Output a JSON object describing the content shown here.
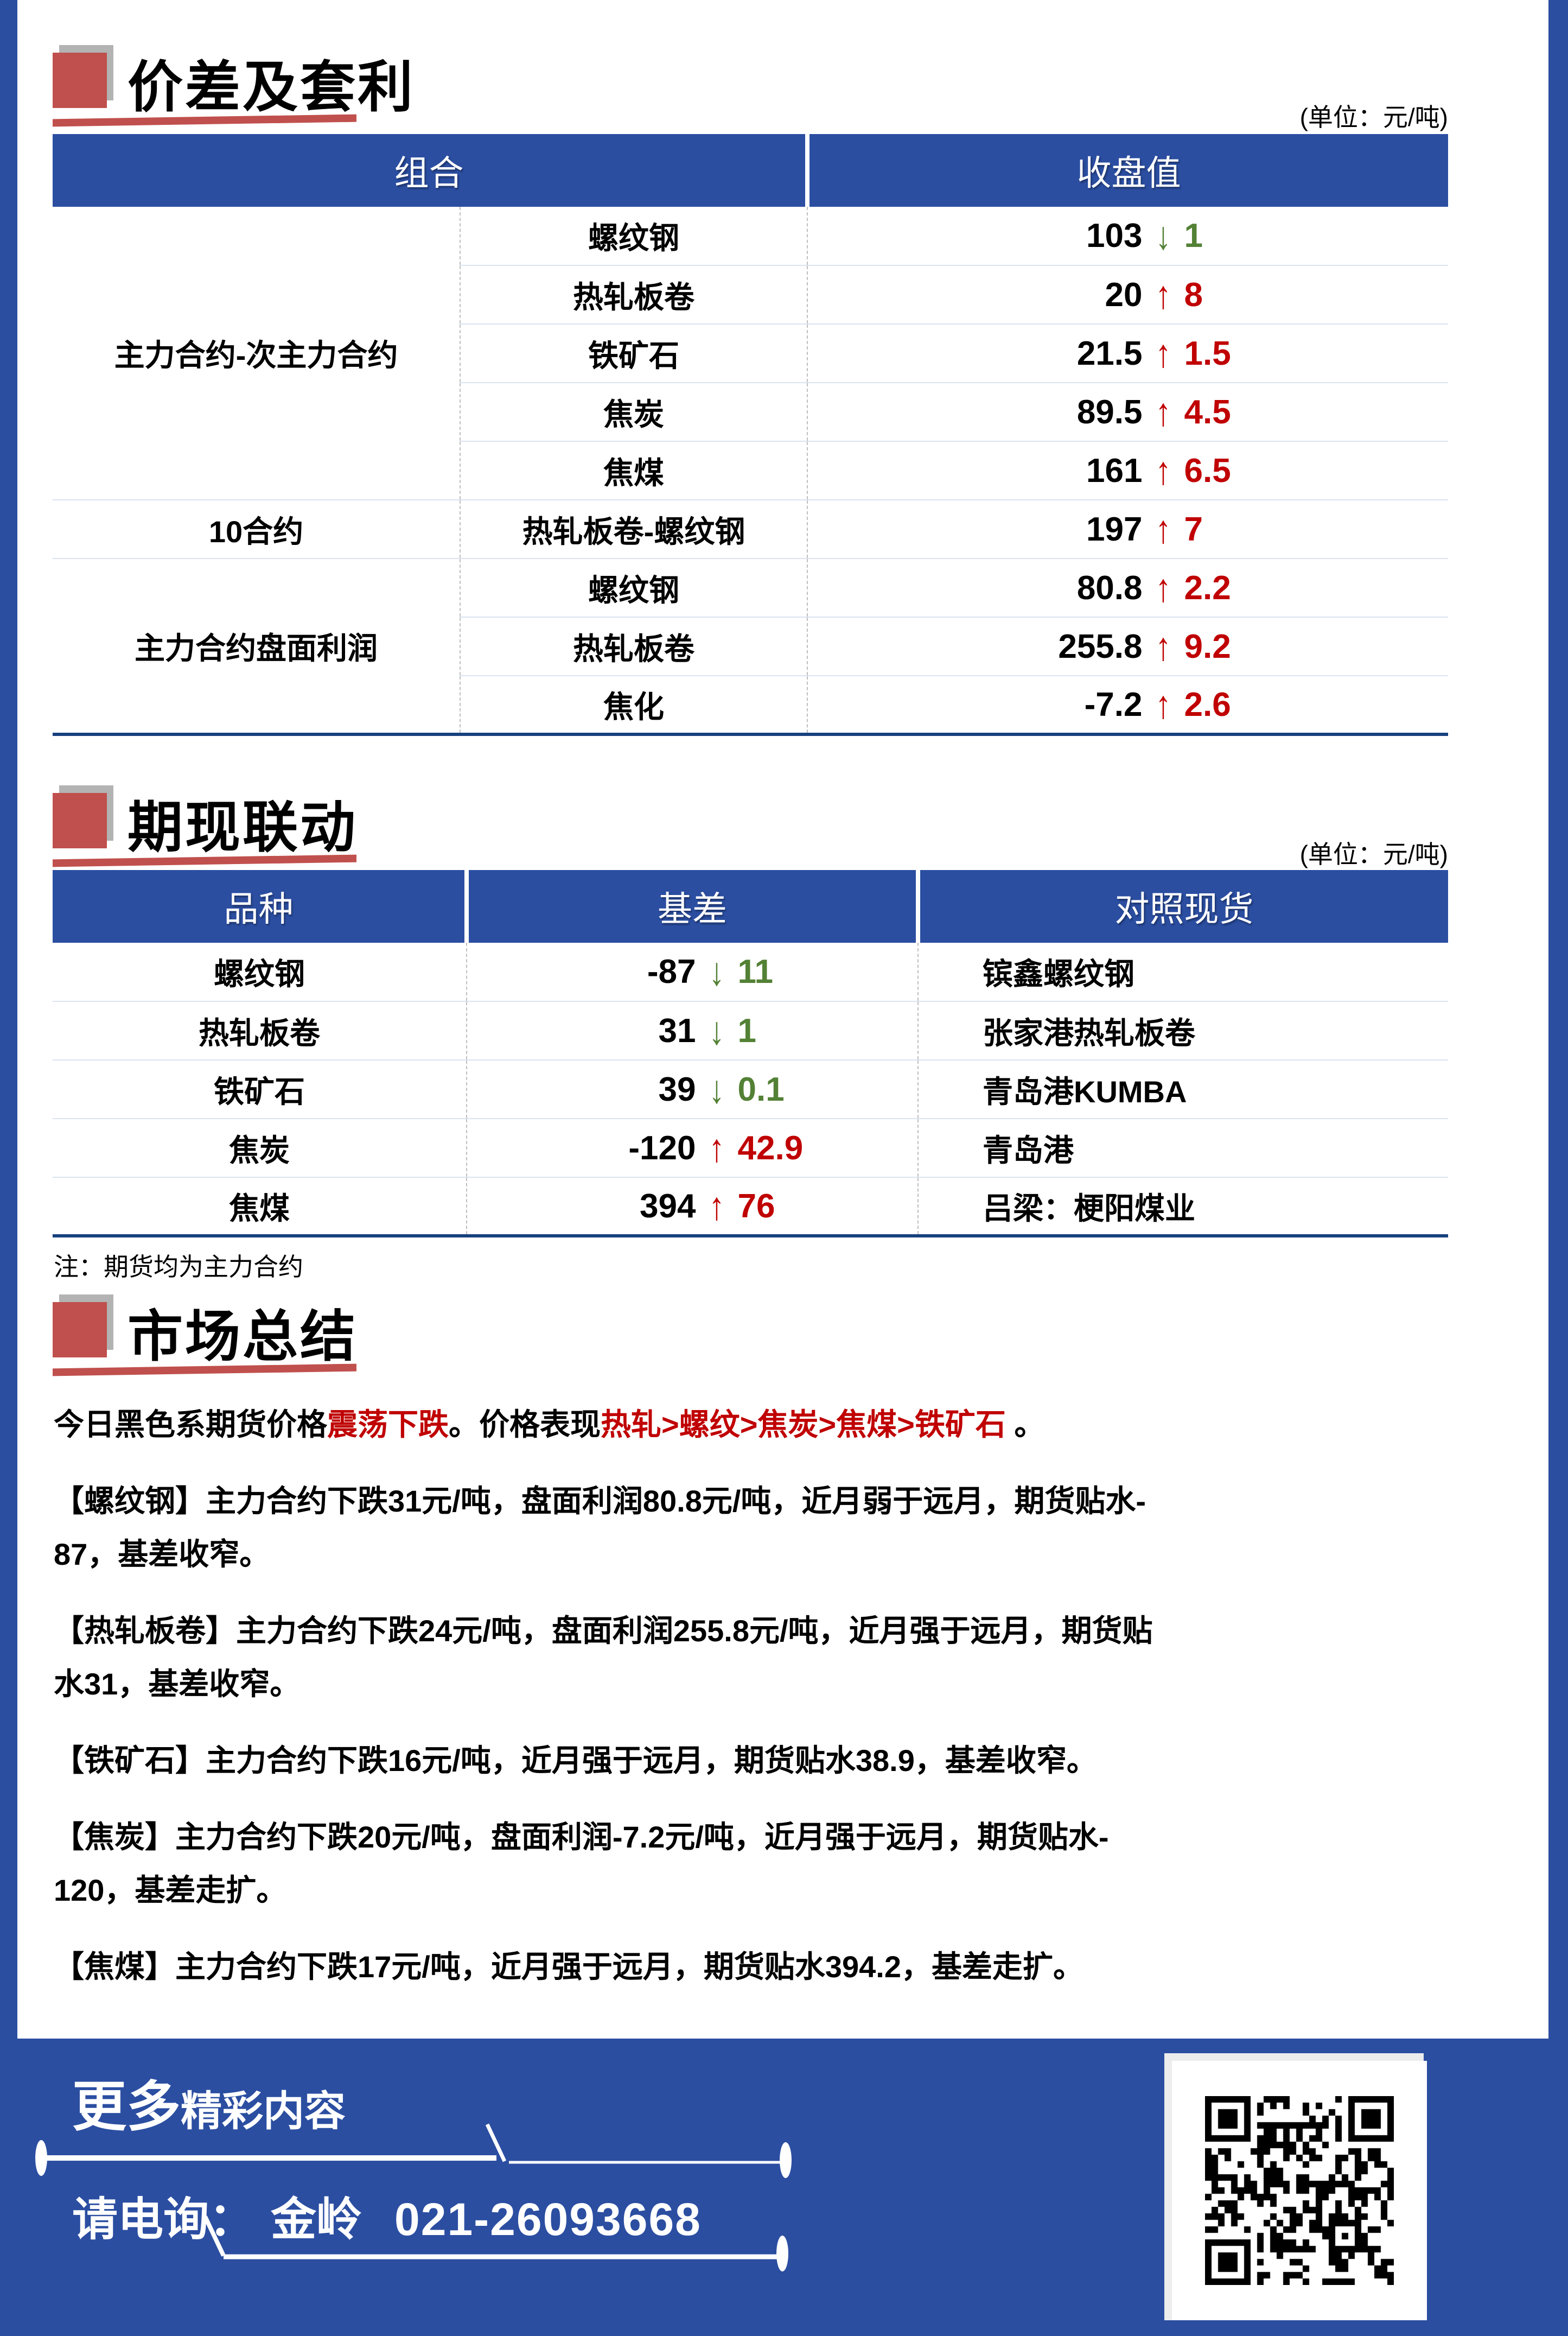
{
  "colors": {
    "accent_blue": "#2b4ea1",
    "navy_border": "#17417e",
    "up_red": "#c00000",
    "down_green": "#538135",
    "brick_red": "#c0504d",
    "shadow_gray": "#b3b3b3",
    "row_separator": "#dbe3f1"
  },
  "table1": {
    "title": "价差及套利",
    "unit": "(单位：元/吨)",
    "col_headers": [
      "组合",
      "收盘值"
    ],
    "groups": [
      {
        "label": "主力合约-次主力合约",
        "rows": [
          {
            "item": "螺纹钢",
            "value": "103",
            "dir": "down",
            "chg": "1"
          },
          {
            "item": "热轧板卷",
            "value": "20",
            "dir": "up",
            "chg": "8"
          },
          {
            "item": "铁矿石",
            "value": "21.5",
            "dir": "up",
            "chg": "1.5"
          },
          {
            "item": "焦炭",
            "value": "89.5",
            "dir": "up",
            "chg": "4.5"
          },
          {
            "item": "焦煤",
            "value": "161",
            "dir": "up",
            "chg": "6.5"
          }
        ]
      },
      {
        "label": "10合约",
        "rows": [
          {
            "item": "热轧板卷-螺纹钢",
            "value": "197",
            "dir": "up",
            "chg": "7"
          }
        ]
      },
      {
        "label": "主力合约盘面利润",
        "rows": [
          {
            "item": "螺纹钢",
            "value": "80.8",
            "dir": "up",
            "chg": "2.2"
          },
          {
            "item": "热轧板卷",
            "value": "255.8",
            "dir": "up",
            "chg": "9.2"
          },
          {
            "item": "焦化",
            "value": "-7.2",
            "dir": "up",
            "chg": "2.6"
          }
        ]
      }
    ]
  },
  "table2": {
    "title": "期现联动",
    "unit": "(单位：元/吨)",
    "col_headers": [
      "品种",
      "基差",
      "对照现货"
    ],
    "rows": [
      {
        "item": "螺纹钢",
        "value": "-87",
        "dir": "down",
        "chg": "11",
        "spot": "镔鑫螺纹钢"
      },
      {
        "item": "热轧板卷",
        "value": "31",
        "dir": "down",
        "chg": "1",
        "spot": "张家港热轧板卷"
      },
      {
        "item": "铁矿石",
        "value": "39",
        "dir": "down",
        "chg": "0.1",
        "spot": "青岛港KUMBA"
      },
      {
        "item": "焦炭",
        "value": "-120",
        "dir": "up",
        "chg": "42.9",
        "spot": "青岛港"
      },
      {
        "item": "焦煤",
        "value": "394",
        "dir": "up",
        "chg": "76",
        "spot": "吕梁：梗阳煤业"
      }
    ],
    "note": "注：期货均为主力合约"
  },
  "summary": {
    "title": "市场总结",
    "paragraphs": [
      {
        "lines": [
          [
            {
              "t": "今日黑色系期货价格"
            },
            {
              "t": "震荡下跌",
              "red": true
            },
            {
              "t": "。价格表现"
            },
            {
              "t": "热轧>螺纹>焦炭>焦煤>铁矿石",
              "red": true
            },
            {
              "t": " 。"
            }
          ]
        ]
      },
      {
        "lines": [
          [
            {
              "t": "【螺纹钢】主力合约下跌31元/吨，盘面利润80.8元/吨，近月弱于远月，期货贴水-"
            }
          ],
          [
            {
              "t": "87，基差收窄。"
            }
          ]
        ]
      },
      {
        "lines": [
          [
            {
              "t": "【热轧板卷】主力合约下跌24元/吨，盘面利润255.8元/吨，近月强于远月，期货贴"
            }
          ],
          [
            {
              "t": "水31，基差收窄。"
            }
          ]
        ]
      },
      {
        "lines": [
          [
            {
              "t": "【铁矿石】主力合约下跌16元/吨，近月强于远月，期货贴水38.9，基差收窄。"
            }
          ]
        ]
      },
      {
        "lines": [
          [
            {
              "t": "【焦炭】主力合约下跌20元/吨，盘面利润-7.2元/吨，近月强于远月，期货贴水-"
            }
          ],
          [
            {
              "t": "120，基差走扩。"
            }
          ]
        ]
      },
      {
        "lines": [
          [
            {
              "t": "【焦煤】主力合约下跌17元/吨，近月强于远月，期货贴水394.2，基差走扩。"
            }
          ]
        ]
      }
    ]
  },
  "footer": {
    "more_big": "更多",
    "more_small": "精彩内容",
    "contact_prefix": "请电询：",
    "contact_name": "金岭",
    "contact_phone": "021-26093668"
  }
}
